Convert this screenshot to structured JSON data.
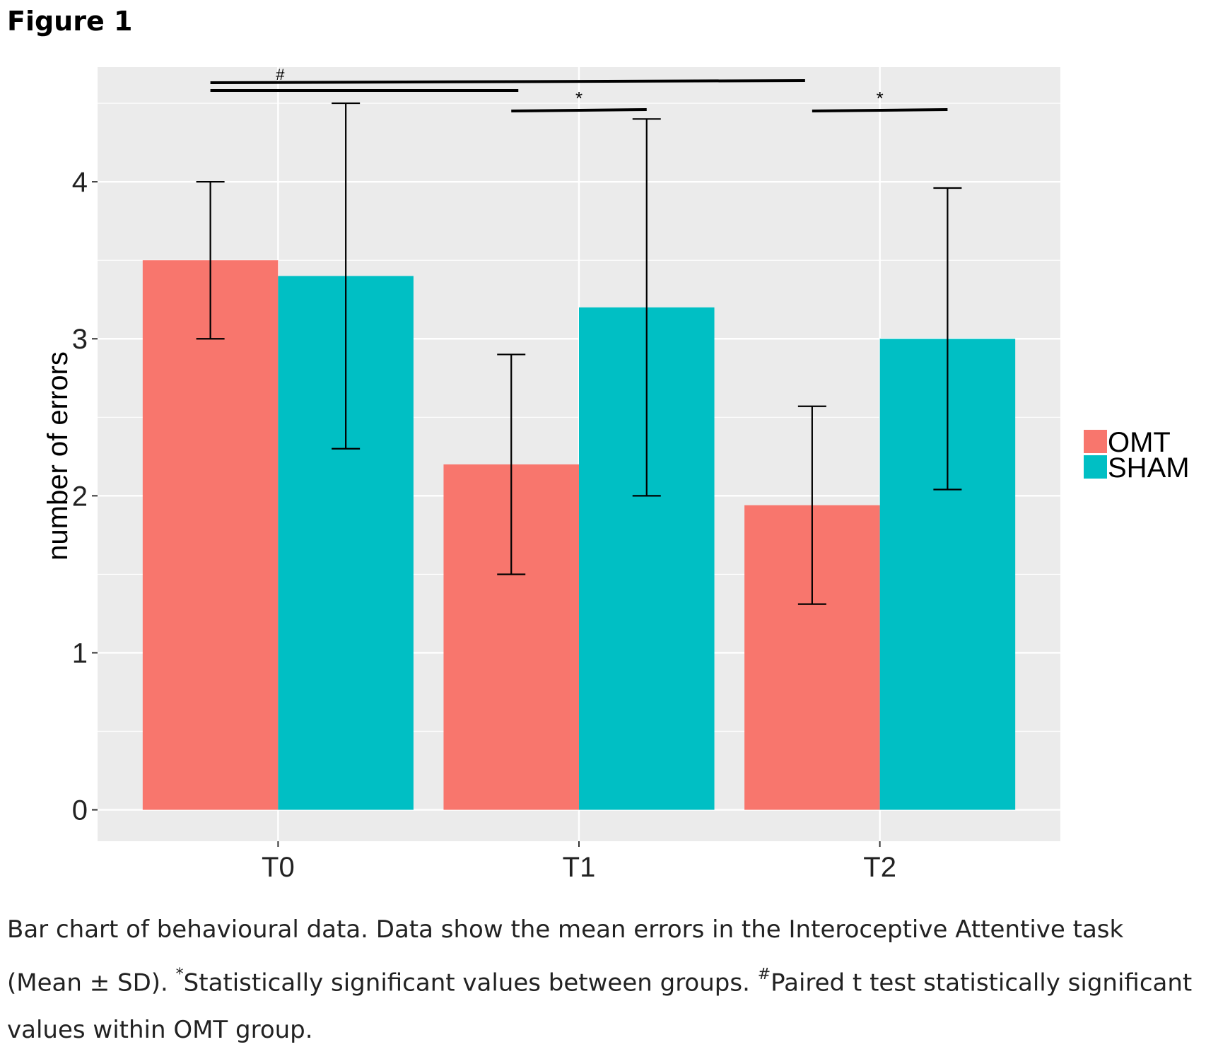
{
  "figure_title": "Figure 1",
  "caption": {
    "part1": "Bar chart of behavioural data. Data show the mean errors in the Interoceptive Attentive task (Mean ± SD). ",
    "sup1": "*",
    "part2": "Statistically significant values between groups. ",
    "sup2": "#",
    "part3": "Paired t test statistically significant values within OMT group."
  },
  "colors": {
    "OMT": "#f8766d",
    "SHAM": "#00bfc4",
    "panel": "#ebebeb",
    "grid": "#ffffff"
  },
  "chart_data": {
    "type": "bar",
    "categories": [
      "T0",
      "T1",
      "T2"
    ],
    "series": [
      {
        "name": "OMT",
        "values": [
          3.5,
          2.2,
          1.94
        ],
        "error": [
          0.5,
          0.7,
          0.63
        ]
      },
      {
        "name": "SHAM",
        "values": [
          3.4,
          3.2,
          3.0
        ],
        "error": [
          1.1,
          1.2,
          0.96
        ]
      }
    ],
    "title": "",
    "xlabel": "",
    "ylabel": "number of errors",
    "ylim": [
      -0.2,
      4.73
    ],
    "yticks": [
      0,
      1,
      2,
      3,
      4
    ],
    "grid": true,
    "legend_position": "right",
    "annotations": [
      {
        "label": "#",
        "from": "T0",
        "to": "T2",
        "type": "paired t test within OMT group"
      },
      {
        "label": "*",
        "category": "T1",
        "type": "between groups"
      },
      {
        "label": "*",
        "category": "T2",
        "type": "between groups"
      }
    ]
  }
}
